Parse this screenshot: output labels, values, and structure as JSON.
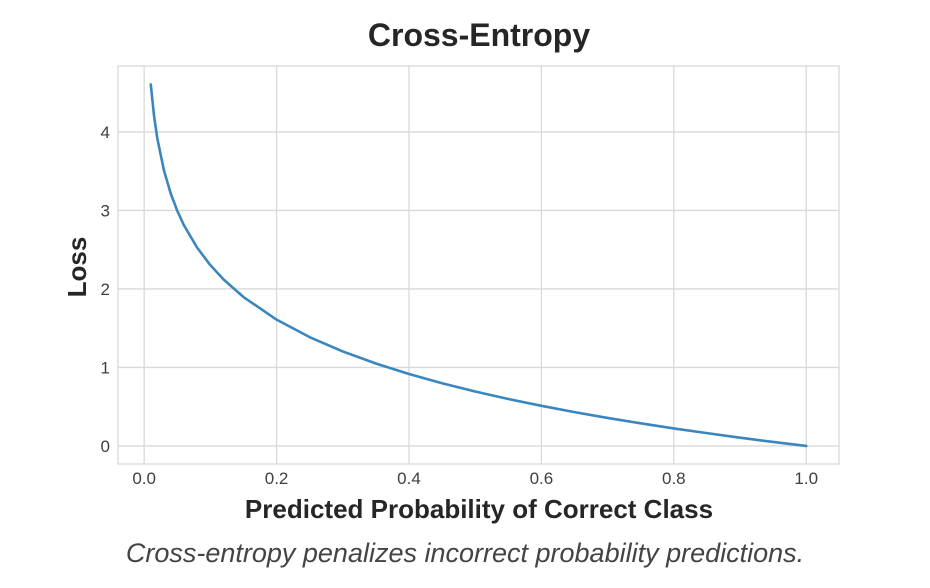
{
  "chart_data": {
    "type": "line",
    "title": "Cross-Entropy",
    "xlabel": "Predicted Probability of Correct Class",
    "ylabel": "Loss",
    "xlim": [
      -0.0395,
      1.0495
    ],
    "ylim": [
      -0.23,
      4.84
    ],
    "x_ticks": [
      0.0,
      0.2,
      0.4,
      0.6,
      0.8,
      1.0
    ],
    "x_tick_labels": [
      "0.0",
      "0.2",
      "0.4",
      "0.6",
      "0.8",
      "1.0"
    ],
    "y_ticks": [
      0,
      1,
      2,
      3,
      4
    ],
    "y_tick_labels": [
      "0",
      "1",
      "2",
      "3",
      "4"
    ],
    "grid": true,
    "series": [
      {
        "color": "#3a86bf",
        "x": [
          0.01,
          0.015,
          0.02,
          0.03,
          0.04,
          0.05,
          0.06,
          0.08,
          0.1,
          0.12,
          0.15,
          0.2,
          0.25,
          0.3,
          0.35,
          0.4,
          0.45,
          0.5,
          0.55,
          0.6,
          0.65,
          0.7,
          0.75,
          0.8,
          0.85,
          0.9,
          0.95,
          1.0
        ],
        "y": [
          4.605,
          4.2,
          3.912,
          3.507,
          3.219,
          2.996,
          2.813,
          2.526,
          2.303,
          2.12,
          1.897,
          1.609,
          1.386,
          1.204,
          1.05,
          0.916,
          0.799,
          0.693,
          0.598,
          0.511,
          0.431,
          0.357,
          0.288,
          0.223,
          0.163,
          0.105,
          0.051,
          0.0
        ]
      }
    ]
  },
  "caption": "Cross-entropy penalizes incorrect probability predictions."
}
